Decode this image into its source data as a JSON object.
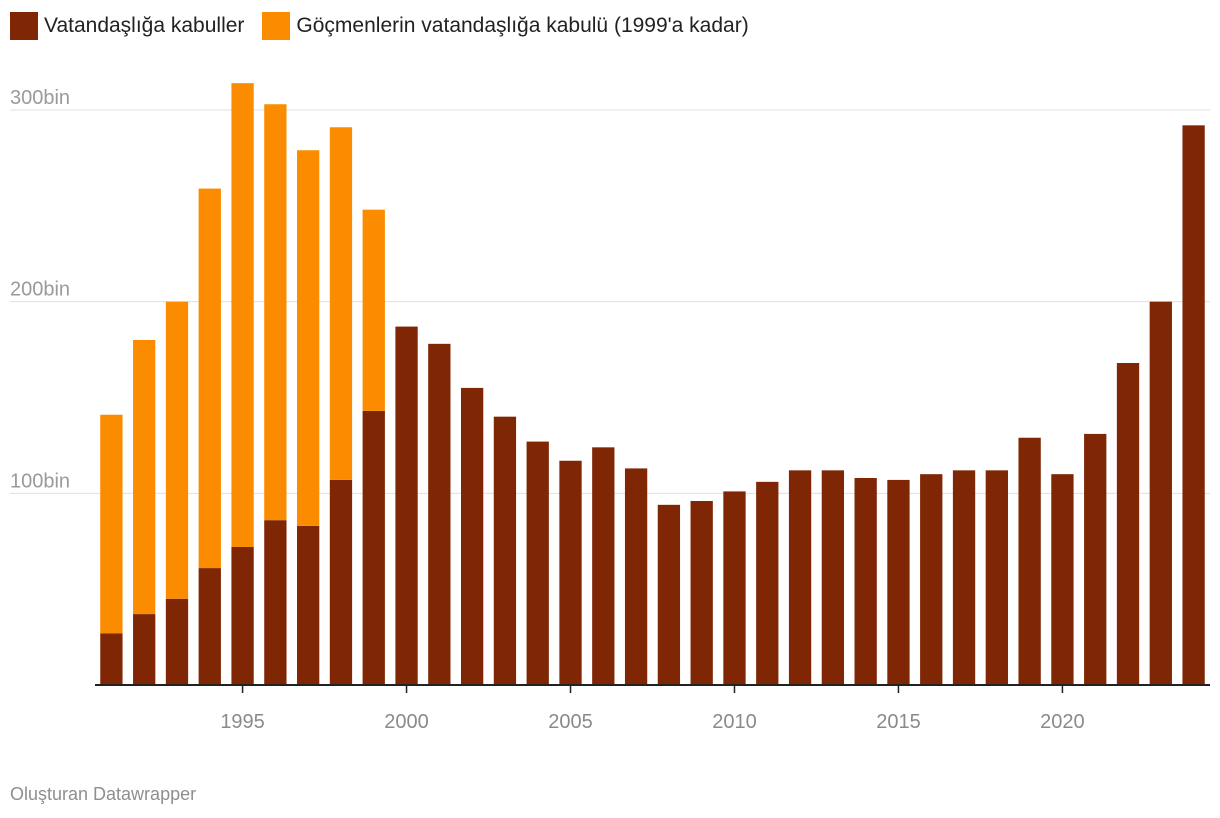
{
  "legend": [
    {
      "label": "Vatandaşlığa kabuller",
      "color": "#7f2704"
    },
    {
      "label": "Göçmenlerin vatandaşlığa kabulü (1999'a kadar)",
      "color": "#fb8c00"
    }
  ],
  "footer": {
    "credit": "Oluşturan Datawrapper"
  },
  "chart_data": {
    "type": "bar",
    "stacked": true,
    "title": "",
    "xlabel": "",
    "ylabel": "",
    "ylim": [
      0,
      300000
    ],
    "y_ticks": [
      {
        "value": 100000,
        "label": "100bin"
      },
      {
        "value": 200000,
        "label": "200bin"
      },
      {
        "value": 300000,
        "label": "300bin"
      }
    ],
    "x_ticks": [
      1995,
      2000,
      2005,
      2010,
      2015,
      2020
    ],
    "categories": [
      1991,
      1992,
      1993,
      1994,
      1995,
      1996,
      1997,
      1998,
      1999,
      2000,
      2001,
      2002,
      2003,
      2004,
      2005,
      2006,
      2007,
      2008,
      2009,
      2010,
      2011,
      2012,
      2013,
      2014,
      2015,
      2016,
      2017,
      2018,
      2019,
      2020,
      2021,
      2022,
      2023,
      2024
    ],
    "series": [
      {
        "name": "Vatandaşlığa kabuller",
        "color": "#7f2704",
        "values": [
          27000,
          37000,
          45000,
          61000,
          72000,
          86000,
          83000,
          107000,
          143000,
          187000,
          178000,
          155000,
          140000,
          127000,
          117000,
          124000,
          113000,
          94000,
          96000,
          101000,
          106000,
          112000,
          112000,
          108000,
          107000,
          110000,
          112000,
          112000,
          129000,
          110000,
          131000,
          168000,
          200000,
          292000
        ]
      },
      {
        "name": "Göçmenlerin vatandaşlığa kabulü (1999'a kadar)",
        "color": "#fb8c00",
        "values": [
          114000,
          143000,
          155000,
          198000,
          242000,
          217000,
          196000,
          184000,
          105000,
          0,
          0,
          0,
          0,
          0,
          0,
          0,
          0,
          0,
          0,
          0,
          0,
          0,
          0,
          0,
          0,
          0,
          0,
          0,
          0,
          0,
          0,
          0,
          0,
          0
        ]
      }
    ]
  }
}
